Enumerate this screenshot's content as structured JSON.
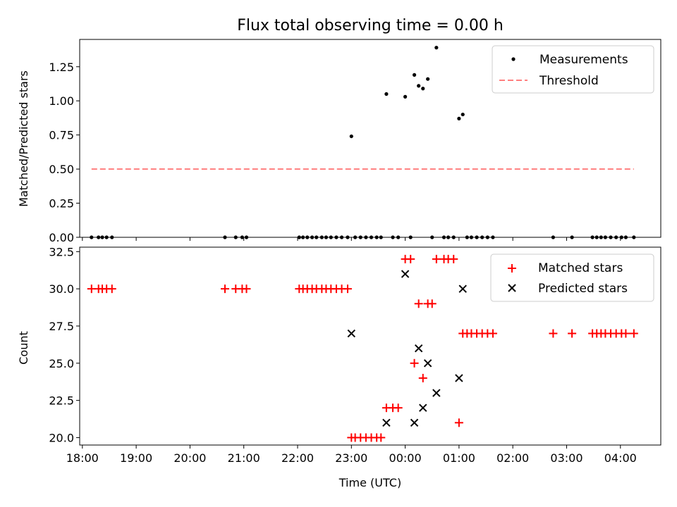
{
  "chart_data": [
    {
      "type": "scatter",
      "title": "Flux total observing time = 0.00 h",
      "xlabel": "",
      "ylabel": "Matched/Predicted stars",
      "xlim": [
        17.95,
        28.75
      ],
      "ylim": [
        0,
        1.45
      ],
      "yticks": [
        "0.00",
        "0.25",
        "0.50",
        "0.75",
        "1.00",
        "1.25"
      ],
      "ytick_values": [
        0,
        0.25,
        0.5,
        0.75,
        1.0,
        1.25
      ],
      "legend": {
        "placement": "top-right",
        "entries": [
          "Measurements",
          "Threshold"
        ]
      },
      "series": [
        {
          "name": "Measurements",
          "color": "#000000",
          "marker": "dot",
          "points": [
            [
              18.17,
              0
            ],
            [
              18.3,
              0
            ],
            [
              18.37,
              0
            ],
            [
              18.45,
              0
            ],
            [
              18.55,
              0
            ],
            [
              20.65,
              0
            ],
            [
              20.85,
              0
            ],
            [
              20.97,
              0
            ],
            [
              21.05,
              0
            ],
            [
              22.03,
              0
            ],
            [
              22.1,
              0
            ],
            [
              22.18,
              0
            ],
            [
              22.27,
              0
            ],
            [
              22.35,
              0
            ],
            [
              22.45,
              0
            ],
            [
              22.53,
              0
            ],
            [
              22.62,
              0
            ],
            [
              22.72,
              0
            ],
            [
              22.82,
              0
            ],
            [
              22.93,
              0
            ],
            [
              23.07,
              0
            ],
            [
              23.17,
              0
            ],
            [
              23.27,
              0
            ],
            [
              23.37,
              0
            ],
            [
              23.47,
              0
            ],
            [
              23.55,
              0
            ],
            [
              23.77,
              0
            ],
            [
              23.87,
              0
            ],
            [
              24.1,
              0
            ],
            [
              24.5,
              0
            ],
            [
              24.72,
              0
            ],
            [
              24.8,
              0
            ],
            [
              24.9,
              0
            ],
            [
              25.15,
              0
            ],
            [
              25.23,
              0
            ],
            [
              25.33,
              0
            ],
            [
              25.43,
              0
            ],
            [
              25.53,
              0
            ],
            [
              25.63,
              0
            ],
            [
              26.75,
              0
            ],
            [
              27.1,
              0
            ],
            [
              27.48,
              0
            ],
            [
              27.56,
              0
            ],
            [
              27.64,
              0
            ],
            [
              27.72,
              0
            ],
            [
              27.82,
              0
            ],
            [
              27.92,
              0
            ],
            [
              28.02,
              0
            ],
            [
              28.1,
              0
            ],
            [
              28.25,
              0
            ],
            [
              23.0,
              0.74
            ],
            [
              23.65,
              1.05
            ],
            [
              24.0,
              1.03
            ],
            [
              24.17,
              1.19
            ],
            [
              24.25,
              1.11
            ],
            [
              24.33,
              1.09
            ],
            [
              24.42,
              1.16
            ],
            [
              24.58,
              1.39
            ],
            [
              25.0,
              0.87
            ],
            [
              25.07,
              0.9
            ]
          ]
        },
        {
          "name": "Threshold",
          "color": "#ff7f7f",
          "style": "dashed",
          "x": [
            18.17,
            28.25
          ],
          "y": [
            0.5,
            0.5
          ]
        }
      ]
    },
    {
      "type": "scatter",
      "title": "",
      "xlabel": "Time (UTC)",
      "ylabel": "Count",
      "xlim": [
        17.95,
        28.75
      ],
      "ylim": [
        19.5,
        32.8
      ],
      "yticks": [
        "20.0",
        "22.5",
        "25.0",
        "27.5",
        "30.0",
        "32.5"
      ],
      "ytick_values": [
        20,
        22.5,
        25,
        27.5,
        30,
        32.5
      ],
      "xticks": [
        "18:00",
        "19:00",
        "20:00",
        "21:00",
        "22:00",
        "23:00",
        "00:00",
        "01:00",
        "02:00",
        "03:00",
        "04:00"
      ],
      "xtick_values": [
        18,
        19,
        20,
        21,
        22,
        23,
        24,
        25,
        26,
        27,
        28
      ],
      "legend": {
        "placement": "top-right",
        "entries": [
          "Matched stars",
          "Predicted stars"
        ]
      },
      "series": [
        {
          "name": "Matched stars",
          "color": "#ff0000",
          "marker": "plus",
          "points": [
            [
              18.17,
              30
            ],
            [
              18.3,
              30
            ],
            [
              18.37,
              30
            ],
            [
              18.45,
              30
            ],
            [
              18.55,
              30
            ],
            [
              20.65,
              30
            ],
            [
              20.85,
              30
            ],
            [
              20.97,
              30
            ],
            [
              21.05,
              30
            ],
            [
              22.03,
              30
            ],
            [
              22.1,
              30
            ],
            [
              22.18,
              30
            ],
            [
              22.27,
              30
            ],
            [
              22.35,
              30
            ],
            [
              22.45,
              30
            ],
            [
              22.53,
              30
            ],
            [
              22.62,
              30
            ],
            [
              22.72,
              30
            ],
            [
              22.82,
              30
            ],
            [
              22.93,
              30
            ],
            [
              23.0,
              20
            ],
            [
              23.07,
              20
            ],
            [
              23.17,
              20
            ],
            [
              23.27,
              20
            ],
            [
              23.37,
              20
            ],
            [
              23.47,
              20
            ],
            [
              23.55,
              20
            ],
            [
              23.65,
              22
            ],
            [
              23.77,
              22
            ],
            [
              23.87,
              22
            ],
            [
              24.0,
              32
            ],
            [
              24.1,
              32
            ],
            [
              24.17,
              25
            ],
            [
              24.25,
              29
            ],
            [
              24.33,
              24
            ],
            [
              24.42,
              29
            ],
            [
              24.5,
              29
            ],
            [
              24.58,
              32
            ],
            [
              24.72,
              32
            ],
            [
              24.8,
              32
            ],
            [
              24.9,
              32
            ],
            [
              25.0,
              21
            ],
            [
              25.07,
              27
            ],
            [
              25.15,
              27
            ],
            [
              25.23,
              27
            ],
            [
              25.33,
              27
            ],
            [
              25.43,
              27
            ],
            [
              25.53,
              27
            ],
            [
              25.63,
              27
            ],
            [
              26.75,
              27
            ],
            [
              27.1,
              27
            ],
            [
              27.48,
              27
            ],
            [
              27.56,
              27
            ],
            [
              27.64,
              27
            ],
            [
              27.72,
              27
            ],
            [
              27.82,
              27
            ],
            [
              27.92,
              27
            ],
            [
              28.02,
              27
            ],
            [
              28.1,
              27
            ],
            [
              28.25,
              27
            ]
          ]
        },
        {
          "name": "Predicted stars",
          "color": "#000000",
          "marker": "x",
          "points": [
            [
              23.0,
              27
            ],
            [
              23.65,
              21
            ],
            [
              24.0,
              31
            ],
            [
              24.17,
              21
            ],
            [
              24.25,
              26
            ],
            [
              24.33,
              22
            ],
            [
              24.42,
              25
            ],
            [
              24.58,
              23
            ],
            [
              25.0,
              24
            ],
            [
              25.07,
              30
            ]
          ]
        }
      ]
    }
  ]
}
